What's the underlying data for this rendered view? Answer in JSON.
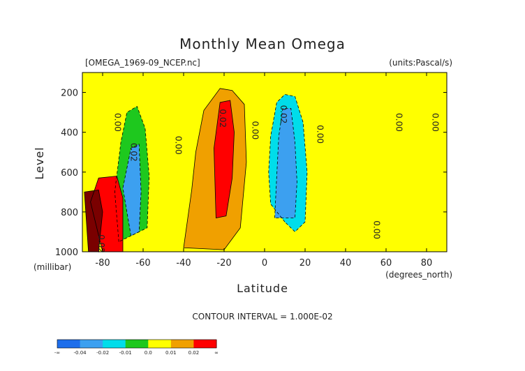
{
  "colors": {
    "le_-0.04": "#1e6eeb",
    "-0.04_-0.03": "#3ca0f0",
    "-0.03_-0.02": "#3ca0f0",
    "-0.02_-0.01": "#00ddea",
    "-0.01_0": "#1ec81e",
    "0_0.01": "#ffff00",
    "0.01_0.02": "#f0a000",
    "0.02_0.03": "#ff0000",
    "ge_0.05": "#7a0000"
  },
  "chart_data": {
    "type": "heatmap",
    "title": "Monthly Mean Omega",
    "source_file": "[OMEGA_1969-09_NCEP.nc]",
    "units": "(units:Pascal/s)",
    "xlabel": "Latitude",
    "x_units": "(degrees_north)",
    "ylabel": "Level",
    "y_units": "(millibar)",
    "xlim": [
      -90,
      90
    ],
    "ylim": [
      1000,
      100
    ],
    "x_tick_values": [
      -80,
      -60,
      -40,
      -20,
      0,
      20,
      40,
      60,
      80
    ],
    "x_tick_labels": [
      "-80",
      "-60",
      "-40",
      "-20",
      "0",
      "20",
      "40",
      "60",
      "80"
    ],
    "y_tick_values": [
      200,
      400,
      600,
      800,
      1000
    ],
    "y_tick_labels": [
      "200",
      "400",
      "600",
      "800",
      "1000"
    ],
    "contour_interval": "CONTOUR INTERVAL = 1.000E-02",
    "colorbar": {
      "boundary_labels": [
        "-∞",
        "-0.04",
        "-0.02",
        "-0.01",
        "0.0",
        "0.01",
        "0.02",
        "∞"
      ],
      "bin_colors": [
        "#1e6eeb",
        "#3ca0f0",
        "#00ddea",
        "#1ec81e",
        "#ffff00",
        "#f0a000",
        "#ff0000"
      ]
    },
    "contour_labels": [
      {
        "text": "0.00",
        "lat": -74,
        "lev": 350
      },
      {
        "text": "0.02",
        "lat": -66,
        "lev": 500
      },
      {
        "text": "0.00",
        "lat": -44,
        "lev": 465
      },
      {
        "text": "0.02",
        "lat": -22,
        "lev": 330
      },
      {
        "text": "0.00",
        "lat": -6,
        "lev": 390
      },
      {
        "text": "0.02",
        "lat": 8,
        "lev": 310
      },
      {
        "text": "0.00",
        "lat": 26,
        "lev": 410
      },
      {
        "text": "0.00",
        "lat": 65,
        "lev": 350
      },
      {
        "text": "0.00",
        "lat": 83,
        "lev": 350
      },
      {
        "text": "0.00",
        "lat": 54,
        "lev": 890
      },
      {
        "text": "0.02",
        "lat": -82,
        "lev": 960
      }
    ],
    "fields": [
      {
        "name": "negative-tropics",
        "value": -0.015,
        "points": [
          [
            10,
            850
          ],
          [
            3,
            760
          ],
          [
            2,
            600
          ],
          [
            3,
            420
          ],
          [
            6,
            250
          ],
          [
            10,
            210
          ],
          [
            15,
            220
          ],
          [
            19,
            350
          ],
          [
            21,
            600
          ],
          [
            20,
            850
          ],
          [
            15,
            900
          ]
        ]
      },
      {
        "name": "negative-tropics-core",
        "value": -0.03,
        "points": [
          [
            5,
            830
          ],
          [
            6,
            620
          ],
          [
            7,
            420
          ],
          [
            9,
            280
          ],
          [
            13,
            280
          ],
          [
            15,
            450
          ],
          [
            16,
            650
          ],
          [
            15,
            830
          ]
        ]
      },
      {
        "name": "negative-sh-midlat",
        "value": -0.01,
        "points": [
          [
            -72,
            950
          ],
          [
            -74,
            700
          ],
          [
            -71,
            450
          ],
          [
            -68,
            300
          ],
          [
            -63,
            270
          ],
          [
            -59,
            380
          ],
          [
            -57,
            620
          ],
          [
            -58,
            880
          ]
        ]
      },
      {
        "name": "negative-sh-midlat-core",
        "value": -0.025,
        "points": [
          [
            -66,
            920
          ],
          [
            -70,
            680
          ],
          [
            -66,
            480
          ],
          [
            -62,
            460
          ],
          [
            -61,
            700
          ],
          [
            -62,
            900
          ]
        ]
      },
      {
        "name": "positive-subtropics",
        "value": 0.015,
        "points": [
          [
            -40,
            980
          ],
          [
            -36,
            690
          ],
          [
            -34,
            500
          ],
          [
            -30,
            290
          ],
          [
            -22,
            180
          ],
          [
            -16,
            190
          ],
          [
            -10,
            260
          ],
          [
            -9,
            550
          ],
          [
            -12,
            880
          ],
          [
            -20,
            990
          ]
        ]
      },
      {
        "name": "positive-subtropics-core",
        "value": 0.025,
        "points": [
          [
            -24,
            830
          ],
          [
            -25,
            480
          ],
          [
            -22,
            250
          ],
          [
            -17,
            240
          ],
          [
            -15,
            400
          ],
          [
            -16,
            630
          ],
          [
            -19,
            820
          ]
        ]
      },
      {
        "name": "positive-sh-polar",
        "value": 0.02,
        "points": [
          [
            -80,
            1000
          ],
          [
            -86,
            750
          ],
          [
            -82,
            630
          ],
          [
            -73,
            620
          ],
          [
            -70,
            730
          ],
          [
            -70,
            1000
          ]
        ]
      },
      {
        "name": "positive-sh-polar-core",
        "value": 0.05,
        "points": [
          [
            -87,
            1000
          ],
          [
            -89,
            700
          ],
          [
            -82,
            690
          ],
          [
            -80,
            800
          ],
          [
            -82,
            1000
          ]
        ]
      }
    ]
  }
}
